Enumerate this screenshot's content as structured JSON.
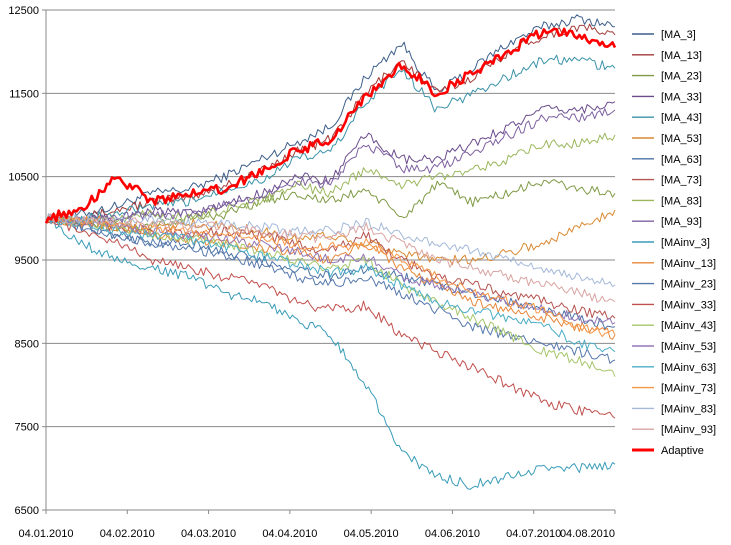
{
  "chart_data": {
    "type": "line",
    "x_tick_labels": [
      "04.01.2010",
      "04.02.2010",
      "04.03.2010",
      "04.04.2010",
      "04.05.2010",
      "04.06.2010",
      "04.07.2010",
      "04.08.2010"
    ],
    "y_ticks": [
      6500,
      7500,
      8500,
      9500,
      10500,
      11500,
      12500
    ],
    "ylim": [
      6500,
      12500
    ],
    "grid": "horizontal",
    "legend_position": "right",
    "series": [
      {
        "name": "[MA_3]",
        "color": "#3d5f8a",
        "values": [
          10000,
          10050,
          10150,
          10300,
          10350,
          10500,
          10700,
          10900,
          11100,
          11700,
          12100,
          11500,
          11800,
          12100,
          12300,
          12400,
          12300
        ]
      },
      {
        "name": "[MA_13]",
        "color": "#a23a37",
        "values": [
          10000,
          10000,
          10100,
          10200,
          10250,
          10400,
          10550,
          10800,
          10950,
          11500,
          11900,
          11500,
          11700,
          12000,
          12200,
          12300,
          12200
        ]
      },
      {
        "name": "[MA_23]",
        "color": "#7f9a45",
        "values": [
          10000,
          9950,
          9900,
          9900,
          10000,
          10050,
          10200,
          10300,
          10200,
          10350,
          10000,
          10400,
          10200,
          10300,
          10450,
          10350,
          10300
        ]
      },
      {
        "name": "[MA_33]",
        "color": "#6a4c8c",
        "values": [
          10000,
          9980,
          10000,
          10100,
          10050,
          10150,
          10300,
          10500,
          10450,
          11000,
          10700,
          10700,
          10900,
          11100,
          11300,
          11300,
          11400
        ]
      },
      {
        "name": "[MA_43]",
        "color": "#3a93a8",
        "values": [
          10000,
          10000,
          10050,
          10150,
          10200,
          10350,
          10450,
          10700,
          10800,
          11400,
          11800,
          11300,
          11500,
          11700,
          11900,
          11900,
          11800
        ]
      },
      {
        "name": "[MA_53]",
        "color": "#d98a33",
        "values": [
          10000,
          9950,
          9900,
          9850,
          9950,
          9900,
          9850,
          9750,
          9800,
          9700,
          9600,
          9500,
          9500,
          9600,
          9700,
          9900,
          10100
        ]
      },
      {
        "name": "[MA_63]",
        "color": "#4a72a6",
        "values": [
          10000,
          9900,
          9800,
          9700,
          9700,
          9600,
          9500,
          9400,
          9300,
          9400,
          9300,
          9200,
          9100,
          9000,
          8900,
          8800,
          8700
        ]
      },
      {
        "name": "[MA_73]",
        "color": "#b55450",
        "values": [
          10000,
          9950,
          9900,
          9850,
          9800,
          9850,
          9800,
          9700,
          9600,
          9800,
          9500,
          9300,
          9200,
          9100,
          9000,
          8900,
          8800
        ]
      },
      {
        "name": "[MA_83]",
        "color": "#9bb75d",
        "values": [
          10000,
          9980,
          10000,
          10050,
          10000,
          10100,
          10200,
          10400,
          10300,
          10600,
          10400,
          10500,
          10600,
          10700,
          10900,
          10900,
          11000
        ]
      },
      {
        "name": "[MA_93]",
        "color": "#7e62a1",
        "values": [
          10000,
          9970,
          10000,
          10050,
          10050,
          10150,
          10250,
          10450,
          10400,
          10900,
          10600,
          10600,
          10800,
          11000,
          11200,
          11200,
          11300
        ]
      },
      {
        "name": "[MAinv_3]",
        "color": "#3a9cb8",
        "values": [
          10000,
          9700,
          9500,
          9400,
          9300,
          9100,
          9000,
          8800,
          8600,
          8000,
          7200,
          6900,
          6800,
          6900,
          7000,
          7000,
          7050
        ]
      },
      {
        "name": "[MAinv_13]",
        "color": "#e8883a",
        "values": [
          10000,
          9950,
          9900,
          9800,
          9750,
          9700,
          9650,
          9600,
          9500,
          9700,
          9400,
          9200,
          9000,
          8900,
          8800,
          8700,
          8600
        ]
      },
      {
        "name": "[MAinv_23]",
        "color": "#5678ac",
        "values": [
          10000,
          9900,
          9800,
          9700,
          9650,
          9550,
          9450,
          9300,
          9200,
          9300,
          9100,
          8900,
          8700,
          8600,
          8500,
          8400,
          8300
        ]
      },
      {
        "name": "[MAinv_33]",
        "color": "#c0504d",
        "values": [
          10000,
          9850,
          9700,
          9500,
          9400,
          9300,
          9200,
          9000,
          8900,
          8950,
          8600,
          8400,
          8200,
          8000,
          7800,
          7700,
          7600
        ]
      },
      {
        "name": "[MAinv_43]",
        "color": "#a7c66b",
        "values": [
          10000,
          9950,
          9900,
          9800,
          9750,
          9700,
          9600,
          9500,
          9400,
          9500,
          9200,
          9000,
          8800,
          8600,
          8400,
          8300,
          8100
        ]
      },
      {
        "name": "[MAinv_53]",
        "color": "#9276b5",
        "values": [
          10000,
          9950,
          9900,
          9850,
          9800,
          9750,
          9700,
          9600,
          9500,
          9550,
          9300,
          9200,
          9100,
          9000,
          8900,
          8800,
          8750
        ]
      },
      {
        "name": "[MAinv_63]",
        "color": "#4badc6",
        "values": [
          10000,
          9950,
          9850,
          9800,
          9750,
          9650,
          9550,
          9450,
          9350,
          9400,
          9200,
          9000,
          8900,
          8800,
          8700,
          8500,
          8400
        ]
      },
      {
        "name": "[MAinv_73]",
        "color": "#f79646",
        "values": [
          10000,
          9980,
          9950,
          9900,
          9850,
          9800,
          9750,
          9700,
          9650,
          9700,
          9500,
          9300,
          9100,
          9000,
          8900,
          8700,
          8600
        ]
      },
      {
        "name": "[MAinv_83]",
        "color": "#a5b9d9",
        "values": [
          10000,
          10000,
          9980,
          10000,
          9950,
          9950,
          9900,
          9850,
          9850,
          9950,
          9800,
          9700,
          9600,
          9500,
          9400,
          9300,
          9200
        ]
      },
      {
        "name": "[MAinv_93]",
        "color": "#d9a5a3",
        "values": [
          10000,
          9980,
          9950,
          9950,
          9900,
          9900,
          9850,
          9800,
          9750,
          9900,
          9700,
          9500,
          9400,
          9300,
          9200,
          9100,
          9000
        ]
      },
      {
        "name": "Adaptive",
        "color": "#ff0000",
        "values": [
          10000,
          10100,
          10500,
          10200,
          10300,
          10350,
          10550,
          10800,
          10950,
          11450,
          11850,
          11500,
          11750,
          12000,
          12250,
          12200,
          12050
        ]
      }
    ]
  }
}
